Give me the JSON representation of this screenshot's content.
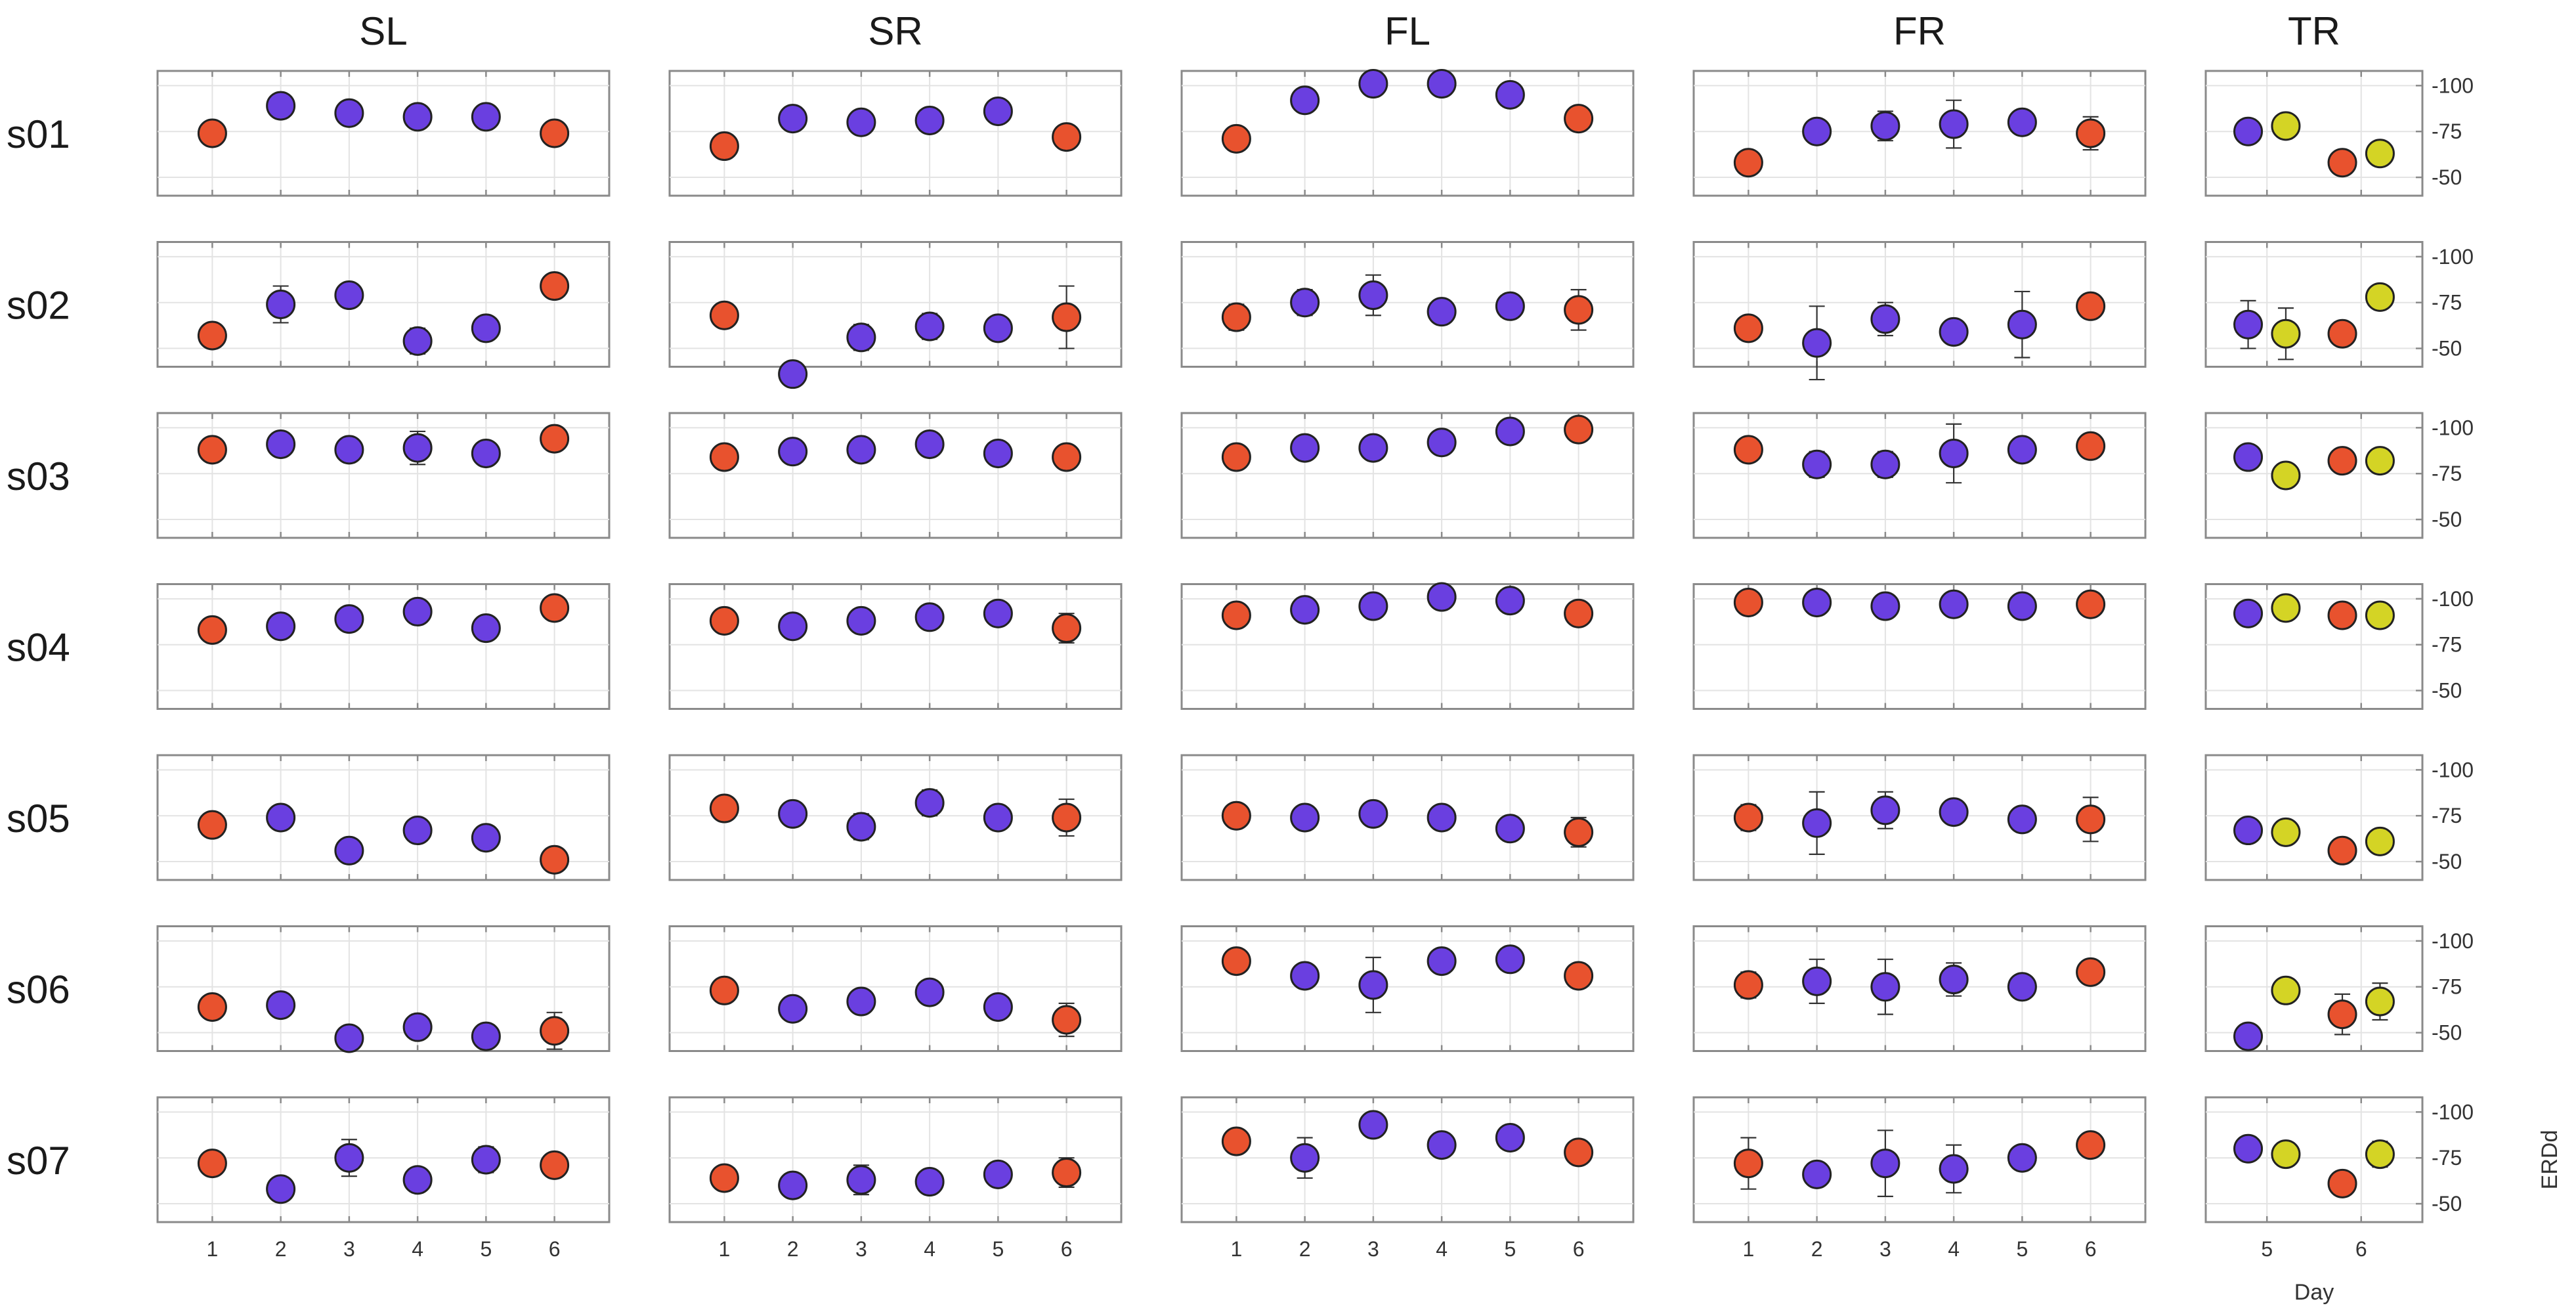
{
  "chart_data": {
    "type": "scatter",
    "title": "",
    "row_labels": [
      "s01",
      "s02",
      "s03",
      "s04",
      "s05",
      "s06",
      "s07"
    ],
    "ylabel": "ERDd",
    "xlabel_tr": "Day",
    "ylim": [
      40,
      108
    ],
    "yticks": [
      50,
      75,
      100
    ],
    "ytick_labels": [
      "-50",
      "-75",
      "-100"
    ],
    "colors": {
      "red": "#e8522e",
      "blue": "#6a3fe0",
      "yellow": "#d4d425"
    },
    "columns": [
      {
        "name": "SL",
        "x": [
          1,
          2,
          3,
          4,
          5,
          6
        ],
        "xtick_labels": [
          "1",
          "2",
          "3",
          "4",
          "5",
          "6"
        ],
        "colors": [
          "red",
          "blue",
          "blue",
          "blue",
          "blue",
          "red"
        ],
        "rows": [
          {
            "y": [
              74,
              89,
              85,
              83,
              83,
              74
            ],
            "err": [
              2,
              3,
              5,
              3,
              4,
              4
            ]
          },
          {
            "y": [
              57,
              74,
              79,
              54,
              61,
              84
            ],
            "err": [
              2,
              10,
              4,
              7,
              2,
              2
            ]
          },
          {
            "y": [
              88,
              91,
              88,
              89,
              86,
              94
            ],
            "err": [
              2,
              2,
              2,
              9,
              2,
              2
            ]
          },
          {
            "y": [
              83,
              85,
              89,
              93,
              84,
              95
            ],
            "err": [
              2,
              2,
              2,
              2,
              2,
              2
            ]
          },
          {
            "y": [
              70,
              74,
              56,
              67,
              63,
              51
            ],
            "err": [
              2,
              6,
              4,
              4,
              3,
              2
            ]
          },
          {
            "y": [
              64,
              65,
              47,
              53,
              48,
              51
            ],
            "err": [
              2,
              3,
              4,
              4,
              2,
              10
            ]
          },
          {
            "y": [
              72,
              58,
              75,
              63,
              74,
              71
            ],
            "err": [
              2,
              2,
              10,
              2,
              7,
              3
            ]
          }
        ]
      },
      {
        "name": "SR",
        "x": [
          1,
          2,
          3,
          4,
          5,
          6
        ],
        "xtick_labels": [
          "1",
          "2",
          "3",
          "4",
          "5",
          "6"
        ],
        "colors": [
          "red",
          "blue",
          "blue",
          "blue",
          "blue",
          "red"
        ],
        "rows": [
          {
            "y": [
              67,
              82,
              80,
              81,
              86,
              72
            ],
            "err": [
              3,
              3,
              5,
              5,
              2,
              6
            ]
          },
          {
            "y": [
              68,
              36,
              56,
              62,
              61,
              67
            ],
            "err": [
              2,
              2,
              7,
              7,
              6,
              17
            ]
          },
          {
            "y": [
              84,
              87,
              88,
              91,
              86,
              84
            ],
            "err": [
              2,
              2,
              2,
              2,
              2,
              6
            ]
          },
          {
            "y": [
              88,
              85,
              88,
              90,
              92,
              84
            ],
            "err": [
              2,
              2,
              2,
              2,
              2,
              8
            ]
          },
          {
            "y": [
              79,
              76,
              69,
              82,
              74,
              74
            ],
            "err": [
              2,
              2,
              7,
              7,
              3,
              10
            ]
          },
          {
            "y": [
              73,
              63,
              67,
              72,
              64,
              57
            ],
            "err": [
              2,
              6,
              2,
              2,
              2,
              9
            ]
          },
          {
            "y": [
              64,
              60,
              63,
              62,
              66,
              67
            ],
            "err": [
              6,
              2,
              8,
              2,
              2,
              8
            ]
          }
        ]
      },
      {
        "name": "FL",
        "x": [
          1,
          2,
          3,
          4,
          5,
          6
        ],
        "xtick_labels": [
          "1",
          "2",
          "3",
          "4",
          "5",
          "6"
        ],
        "colors": [
          "red",
          "blue",
          "blue",
          "blue",
          "blue",
          "red"
        ],
        "rows": [
          {
            "y": [
              71,
              92,
              101,
              101,
              95,
              82
            ],
            "err": [
              5,
              2,
              2,
              2,
              4,
              2
            ]
          },
          {
            "y": [
              67,
              75,
              79,
              70,
              73,
              71
            ],
            "err": [
              7,
              7,
              11,
              2,
              2,
              11
            ]
          },
          {
            "y": [
              84,
              89,
              89,
              92,
              98,
              99
            ],
            "err": [
              2,
              2,
              5,
              2,
              2,
              2
            ]
          },
          {
            "y": [
              91,
              94,
              96,
              101,
              99,
              92
            ],
            "err": [
              2,
              2,
              2,
              2,
              2,
              2
            ]
          },
          {
            "y": [
              75,
              74,
              76,
              74,
              68,
              66
            ],
            "err": [
              2,
              2,
              2,
              4,
              5,
              8
            ]
          },
          {
            "y": [
              89,
              81,
              76,
              89,
              90,
              81
            ],
            "err": [
              2,
              5,
              15,
              2,
              2,
              2
            ]
          },
          {
            "y": [
              84,
              75,
              93,
              82,
              86,
              78
            ],
            "err": [
              2,
              11,
              2,
              4,
              2,
              2
            ]
          }
        ]
      },
      {
        "name": "FR",
        "x": [
          1,
          2,
          3,
          4,
          5,
          6
        ],
        "xtick_labels": [
          "1",
          "2",
          "3",
          "4",
          "5",
          "6"
        ],
        "colors": [
          "red",
          "blue",
          "blue",
          "blue",
          "blue",
          "red"
        ],
        "rows": [
          {
            "y": [
              58,
              75,
              78,
              79,
              80,
              74
            ],
            "err": [
              6,
              5,
              8,
              13,
              2,
              9
            ]
          },
          {
            "y": [
              61,
              53,
              66,
              59,
              63,
              73
            ],
            "err": [
              3,
              20,
              9,
              6,
              18,
              5
            ]
          },
          {
            "y": [
              88,
              80,
              80,
              86,
              88,
              90
            ],
            "err": [
              2,
              7,
              7,
              16,
              2,
              2
            ]
          },
          {
            "y": [
              98,
              98,
              96,
              97,
              96,
              97
            ],
            "err": [
              2,
              2,
              3,
              3,
              2,
              2
            ]
          },
          {
            "y": [
              74,
              71,
              78,
              77,
              73,
              73
            ],
            "err": [
              7,
              17,
              10,
              6,
              6,
              12
            ]
          },
          {
            "y": [
              76,
              78,
              75,
              79,
              75,
              83
            ],
            "err": [
              7,
              12,
              15,
              9,
              2,
              3
            ]
          },
          {
            "y": [
              72,
              66,
              72,
              69,
              75,
              82
            ],
            "err": [
              14,
              6,
              18,
              13,
              4,
              2
            ]
          }
        ]
      },
      {
        "name": "TR",
        "x": [
          4.8,
          5.2,
          5.8,
          6.2
        ],
        "xticks": [
          5,
          6
        ],
        "xtick_labels": [
          "5",
          "6"
        ],
        "xlabel": "Day",
        "colors": [
          "blue",
          "yellow",
          "red",
          "yellow"
        ],
        "rows": [
          {
            "y": [
              75,
              78,
              58,
              63
            ],
            "err": [
              4,
              4,
              3,
              3
            ]
          },
          {
            "y": [
              63,
              58,
              58,
              78
            ],
            "err": [
              13,
              14,
              4,
              4
            ]
          },
          {
            "y": [
              84,
              74,
              82,
              82
            ],
            "err": [
              3,
              2,
              2,
              2
            ]
          },
          {
            "y": [
              92,
              95,
              91,
              91
            ],
            "err": [
              2,
              2,
              4,
              5
            ]
          },
          {
            "y": [
              67,
              66,
              56,
              61
            ],
            "err": [
              3,
              4,
              4,
              6
            ]
          },
          {
            "y": [
              48,
              73,
              60,
              67
            ],
            "err": [
              3,
              6,
              11,
              10
            ]
          },
          {
            "y": [
              80,
              77,
              61,
              77
            ],
            "err": [
              2,
              2,
              6,
              7
            ]
          }
        ]
      }
    ]
  }
}
